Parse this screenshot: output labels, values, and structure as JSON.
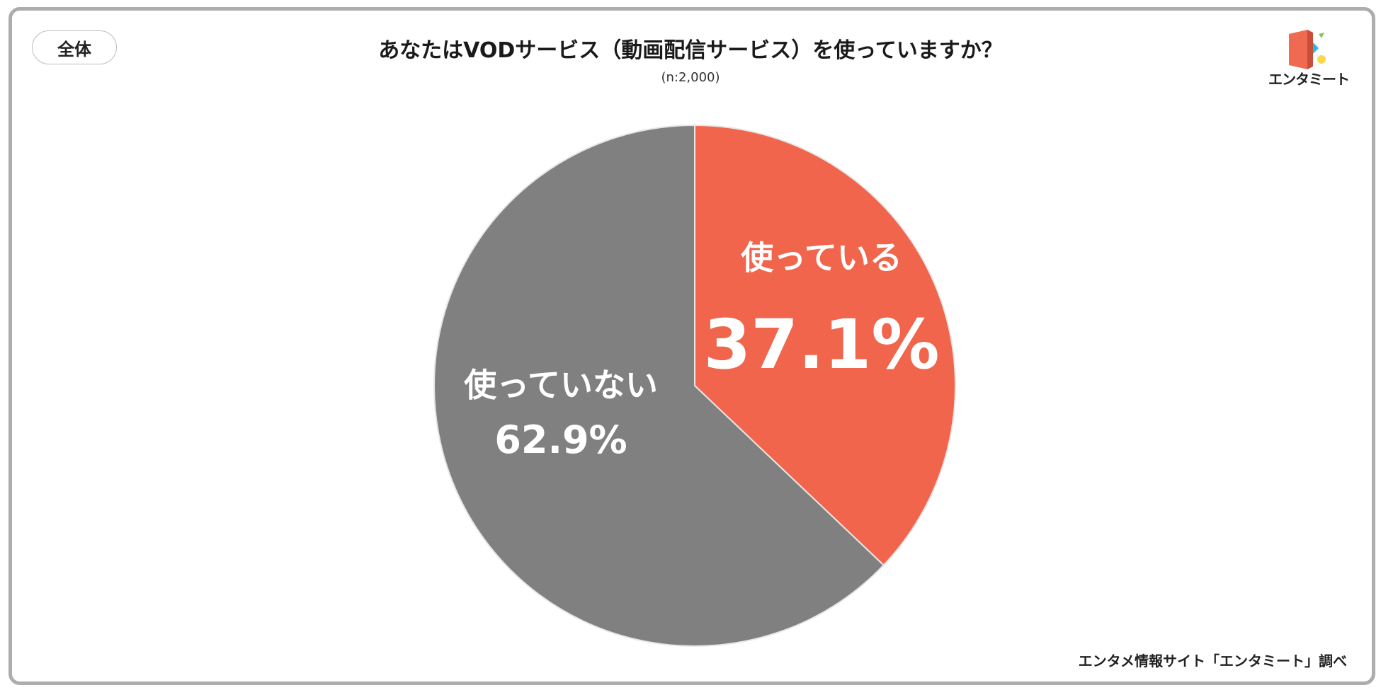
{
  "segment_badge": "全体",
  "logo": {
    "name": "entameet-logo",
    "text": "エンタミート",
    "colors": [
      "#ef6a50",
      "#29b6e8",
      "#8bc34a",
      "#f9d94a"
    ]
  },
  "source_note": "エンタメ情報サイト「エンタミート」調べ",
  "chart_data": {
    "type": "pie",
    "title": "あなたはVODサービス（動画配信サービス）を使っていますか？",
    "subtitle": "(n:2,000)",
    "categories": [
      "使っている",
      "使っていない"
    ],
    "values": [
      37.1,
      62.9
    ],
    "value_labels": [
      "37.1%",
      "62.9%"
    ],
    "colors": [
      "#f0654c",
      "#808080"
    ],
    "start_angle": "12 o'clock, clockwise",
    "legend": "none (labels on slices)"
  }
}
